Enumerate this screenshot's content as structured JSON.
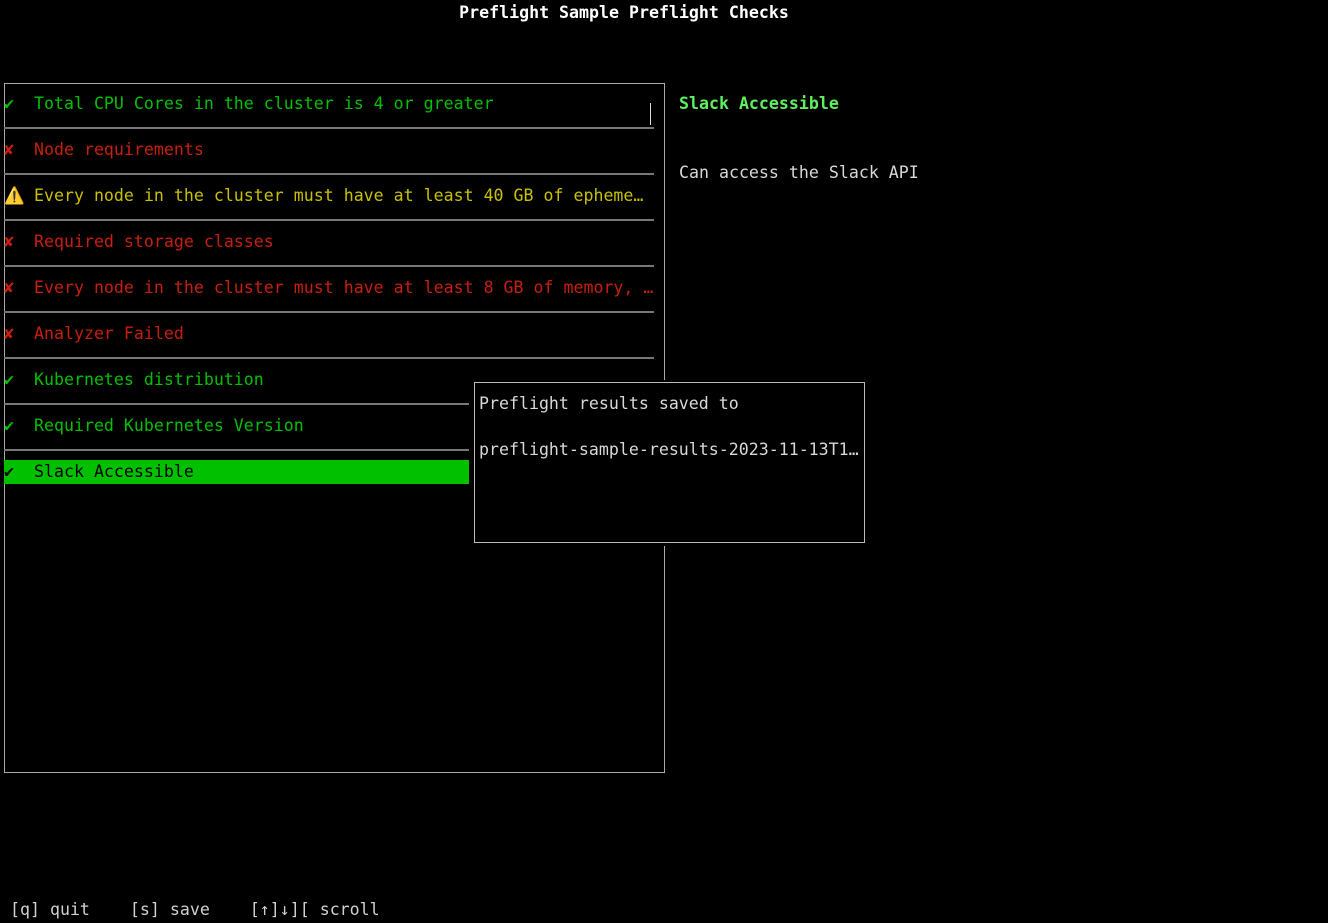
{
  "title": "Preflight Sample Preflight Checks",
  "checks": [
    {
      "status": "pass",
      "icon": "check-icon",
      "glyph": "✔",
      "label": "Total CPU Cores in the cluster is 4 or greater"
    },
    {
      "status": "fail",
      "icon": "cross-icon",
      "glyph": "✘",
      "label": "Node requirements"
    },
    {
      "status": "warn",
      "icon": "warning-icon",
      "glyph": "⚠️",
      "label": "Every node in the cluster must have at least 40 GB of epheme…"
    },
    {
      "status": "fail",
      "icon": "cross-icon",
      "glyph": "✘",
      "label": "Required storage classes"
    },
    {
      "status": "fail",
      "icon": "cross-icon",
      "glyph": "✘",
      "label": "Every node in the cluster must have at least 8 GB of memory, …"
    },
    {
      "status": "fail",
      "icon": "cross-icon",
      "glyph": "✘",
      "label": "Analyzer Failed"
    },
    {
      "status": "pass",
      "icon": "check-icon",
      "glyph": "✔",
      "label": "Kubernetes distribution"
    },
    {
      "status": "pass",
      "icon": "check-icon",
      "glyph": "✔",
      "label": "Required Kubernetes Version"
    },
    {
      "status": "pass",
      "icon": "check-icon",
      "glyph": "✔",
      "label": "Slack Accessible",
      "selected": true
    }
  ],
  "detail": {
    "title": "Slack Accessible",
    "description": "Can access the Slack API"
  },
  "popup": {
    "line1": "Preflight results saved to",
    "line2": "preflight-sample-results-2023-11-13T1…"
  },
  "footer": {
    "text": "[q] quit    [s] save    [↑]↓][ scroll"
  },
  "colors": {
    "pass": "#00c000",
    "fail": "#c81e0e",
    "warn": "#c8c000",
    "selected_bg": "#00c000"
  }
}
